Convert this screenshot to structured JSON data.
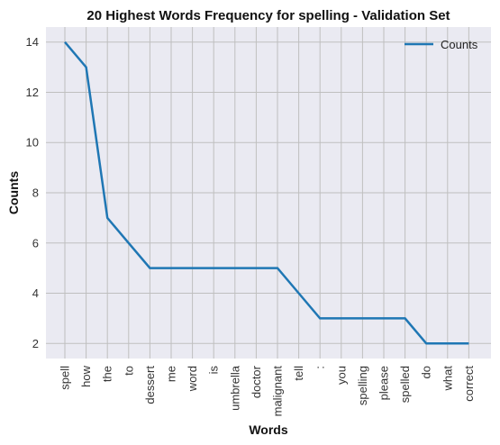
{
  "chart_data": {
    "type": "line",
    "title": "20 Highest Words Frequency for spelling - Validation Set",
    "xlabel": "Words",
    "ylabel": "Counts",
    "categories": [
      "spell",
      "how",
      "the",
      "to",
      "dessert",
      "me",
      "word",
      "is",
      "umbrella",
      "doctor",
      "malignant",
      "tell",
      ":",
      "you",
      "spelling",
      "please",
      "spelled",
      "do",
      "what",
      "correct"
    ],
    "series": [
      {
        "name": "Counts",
        "values": [
          14,
          13,
          7,
          6,
          5,
          5,
          5,
          5,
          5,
          5,
          5,
          4,
          3,
          3,
          3,
          3,
          3,
          2,
          2,
          2
        ]
      }
    ],
    "y_ticks": [
      2,
      4,
      6,
      8,
      10,
      12,
      14
    ],
    "ylim": [
      1.4,
      14.6
    ],
    "grid": true,
    "legend_position": "top-right",
    "colors": {
      "line": "#1f77b4",
      "plot_bg": "#eaeaf2",
      "grid": "#bfbfbf"
    }
  }
}
